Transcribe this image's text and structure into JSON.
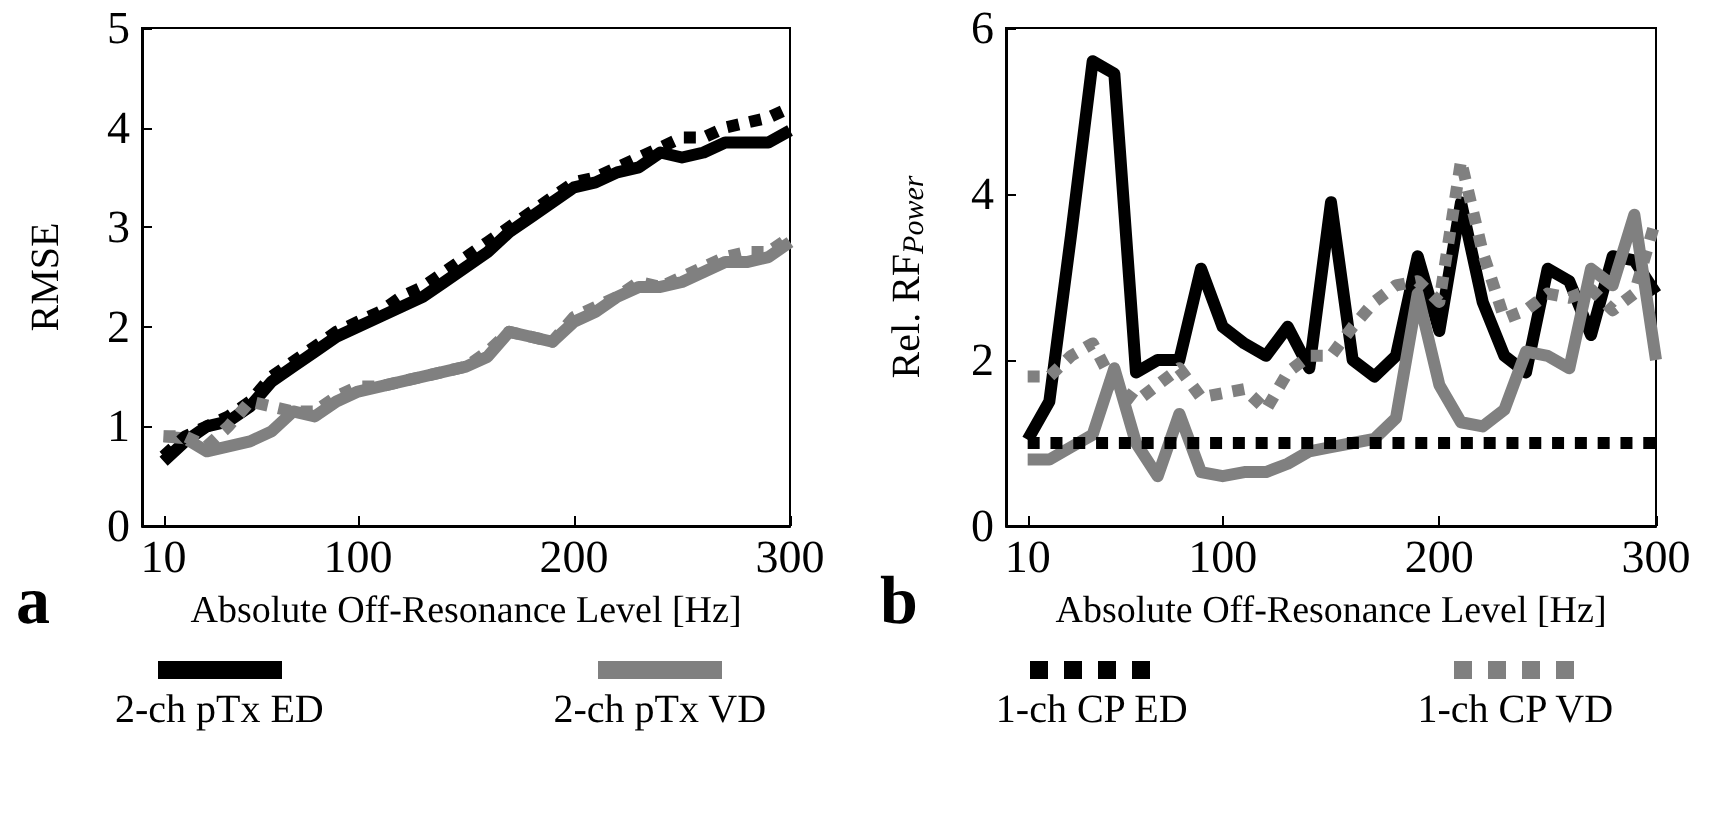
{
  "chart_data": [
    {
      "type": "line",
      "ylabel": "RMSE",
      "xlabel": "Absolute Off-Resonance Level [Hz]",
      "annotations": [
        "a"
      ],
      "xlim": [
        0,
        300
      ],
      "xticks": [
        10,
        100,
        200,
        300
      ],
      "ylim": [
        0,
        5
      ],
      "yticks": [
        0,
        1,
        2,
        3,
        4,
        5
      ],
      "grid": false,
      "legend": "bottom",
      "marker": "none",
      "x": [
        10,
        20,
        30,
        40,
        50,
        60,
        70,
        80,
        90,
        100,
        110,
        120,
        130,
        140,
        150,
        160,
        170,
        180,
        190,
        200,
        210,
        220,
        230,
        240,
        250,
        260,
        270,
        280,
        290,
        300
      ],
      "series": [
        {
          "name": "2-ch pTx ED",
          "color": "#000000",
          "line_style": "solid",
          "values": [
            0.65,
            0.85,
            1.0,
            1.05,
            1.2,
            1.45,
            1.6,
            1.75,
            1.9,
            2.0,
            2.1,
            2.2,
            2.3,
            2.45,
            2.6,
            2.75,
            2.95,
            3.1,
            3.25,
            3.4,
            3.45,
            3.55,
            3.6,
            3.75,
            3.7,
            3.75,
            3.85,
            3.85,
            3.85,
            3.97
          ]
        },
        {
          "name": "2-ch pTx VD",
          "color": "#808080",
          "line_style": "solid",
          "values": [
            0.9,
            0.88,
            0.75,
            0.8,
            0.85,
            0.95,
            1.15,
            1.1,
            1.25,
            1.35,
            1.4,
            1.45,
            1.5,
            1.55,
            1.6,
            1.7,
            1.95,
            1.9,
            1.85,
            2.05,
            2.15,
            2.3,
            2.4,
            2.4,
            2.45,
            2.55,
            2.65,
            2.65,
            2.7,
            2.85
          ]
        },
        {
          "name": "1-ch CP ED",
          "color": "#000000",
          "line_style": "dotted",
          "values": [
            0.7,
            0.9,
            1.0,
            1.1,
            1.25,
            1.5,
            1.65,
            1.8,
            1.95,
            2.05,
            2.15,
            2.3,
            2.4,
            2.55,
            2.7,
            2.85,
            3.0,
            3.15,
            3.3,
            3.45,
            3.5,
            3.6,
            3.7,
            3.8,
            3.9,
            3.9,
            4.0,
            4.05,
            4.1,
            4.2
          ]
        },
        {
          "name": "1-ch CP VD",
          "color": "#808080",
          "line_style": "dotted",
          "values": [
            0.9,
            0.9,
            0.8,
            1.0,
            1.25,
            1.2,
            1.15,
            1.15,
            1.3,
            1.4,
            1.4,
            1.45,
            1.5,
            1.55,
            1.6,
            1.75,
            1.95,
            1.9,
            1.85,
            2.1,
            2.2,
            2.3,
            2.45,
            2.4,
            2.5,
            2.6,
            2.7,
            2.75,
            2.75,
            2.9
          ]
        }
      ]
    },
    {
      "type": "line",
      "ylabel": "Rel. RF$_{Power}$",
      "xlabel": "Absolute Off-Resonance Level [Hz]",
      "annotations": [
        "b"
      ],
      "xlim": [
        0,
        300
      ],
      "xticks": [
        10,
        100,
        200,
        300
      ],
      "ylim": [
        0,
        6
      ],
      "yticks": [
        0,
        2,
        4,
        6
      ],
      "grid": false,
      "legend": "bottom",
      "marker": "none",
      "x": [
        10,
        20,
        30,
        40,
        50,
        60,
        70,
        80,
        90,
        100,
        110,
        120,
        130,
        140,
        150,
        160,
        170,
        180,
        190,
        200,
        210,
        220,
        230,
        240,
        250,
        260,
        270,
        280,
        290,
        300
      ],
      "series": [
        {
          "name": "2-ch pTx ED",
          "color": "#000000",
          "line_style": "solid",
          "values": [
            1.04,
            1.5,
            3.5,
            5.6,
            5.45,
            1.85,
            2.0,
            2.0,
            3.1,
            2.4,
            2.2,
            2.05,
            2.4,
            1.9,
            3.9,
            2.0,
            1.8,
            2.05,
            3.25,
            2.35,
            3.9,
            2.7,
            2.05,
            1.85,
            3.1,
            2.95,
            2.3,
            3.25,
            3.2,
            2.8
          ]
        },
        {
          "name": "2-ch pTx VD",
          "color": "#808080",
          "line_style": "solid",
          "values": [
            0.8,
            0.8,
            0.95,
            1.1,
            1.9,
            1.0,
            0.6,
            1.35,
            0.65,
            0.6,
            0.65,
            0.65,
            0.75,
            0.9,
            0.95,
            1.0,
            1.05,
            1.3,
            2.8,
            1.7,
            1.25,
            1.2,
            1.4,
            2.1,
            2.05,
            1.9,
            3.1,
            2.9,
            3.75,
            2.0
          ]
        },
        {
          "name": "1-ch CP ED",
          "color": "#000000",
          "line_style": "dotted",
          "values": [
            1,
            1,
            1,
            1,
            1,
            1,
            1,
            1,
            1,
            1,
            1,
            1,
            1,
            1,
            1,
            1,
            1,
            1,
            1,
            1,
            1,
            1,
            1,
            1,
            1,
            1,
            1,
            1,
            1,
            1
          ]
        },
        {
          "name": "1-ch CP VD",
          "color": "#808080",
          "line_style": "dotted",
          "values": [
            1.8,
            1.8,
            2.05,
            2.2,
            1.7,
            1.5,
            1.7,
            1.9,
            1.55,
            1.6,
            1.65,
            1.4,
            1.85,
            2.05,
            2.05,
            2.4,
            2.7,
            2.9,
            2.95,
            2.7,
            4.4,
            3.3,
            2.5,
            2.6,
            2.8,
            2.75,
            2.85,
            2.6,
            2.8,
            3.7
          ]
        }
      ]
    }
  ]
}
